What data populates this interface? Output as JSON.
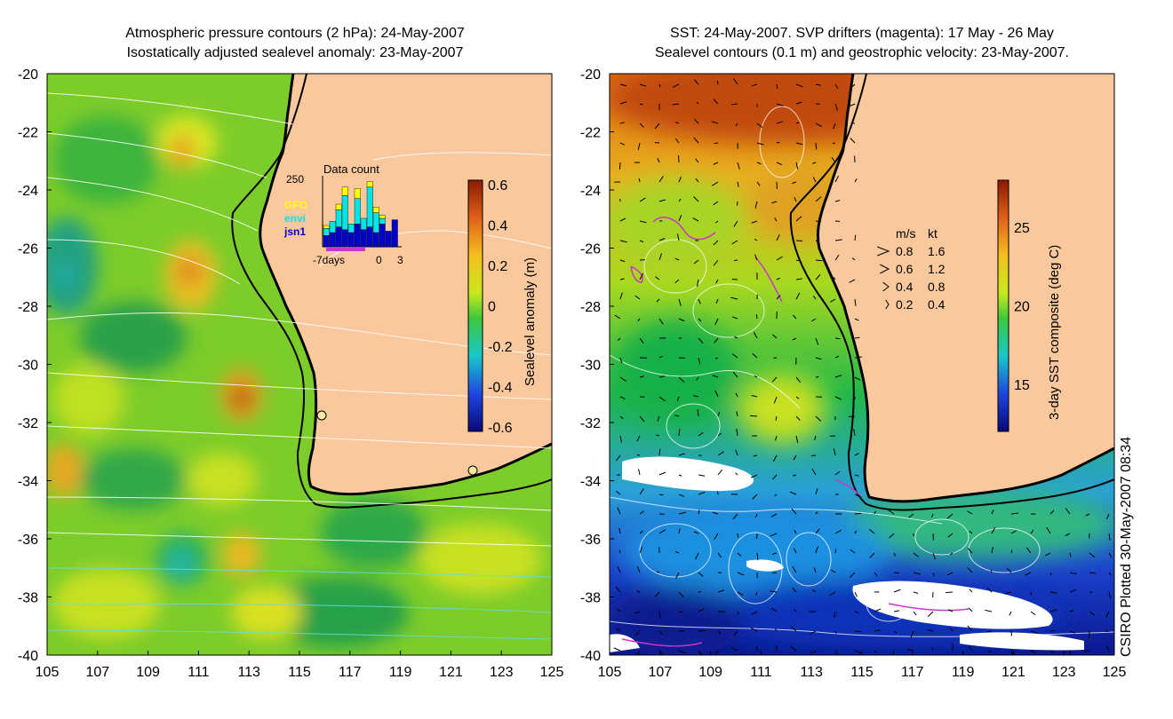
{
  "left_panel": {
    "title_line1": "Atmospheric pressure contours (2 hPa): 24-May-2007",
    "title_line2": "Isostatically adjusted sealevel anomaly: 23-May-2007",
    "colorbar": {
      "label": "Sealevel anomaly (m)",
      "ticks": [
        "0.6",
        "0.4",
        "0.2",
        "0",
        "-0.2",
        "-0.4",
        "-0.6"
      ]
    },
    "inset": {
      "title": "Data count",
      "ymax_label": "250",
      "legend": [
        {
          "name": "GFO",
          "color": "#ffff00"
        },
        {
          "name": "envi",
          "color": "#00e5e5"
        },
        {
          "name": "jsn1",
          "color": "#0000cc"
        }
      ],
      "x_labels": [
        "-7days",
        "0",
        "3"
      ],
      "bars": [
        {
          "jsn1": 40,
          "envi": 25,
          "gfo": 10
        },
        {
          "jsn1": 50,
          "envi": 40,
          "gfo": 0
        },
        {
          "jsn1": 70,
          "envi": 60,
          "gfo": 20
        },
        {
          "jsn1": 60,
          "envi": 120,
          "gfo": 30
        },
        {
          "jsn1": 50,
          "envi": 30,
          "gfo": 0
        },
        {
          "jsn1": 80,
          "envi": 90,
          "gfo": 35
        },
        {
          "jsn1": 60,
          "envi": 40,
          "gfo": 0
        },
        {
          "jsn1": 70,
          "envi": 140,
          "gfo": 20
        },
        {
          "jsn1": 50,
          "envi": 70,
          "gfo": 20
        },
        {
          "jsn1": 80,
          "envi": 20,
          "gfo": 10
        },
        {
          "jsn1": 55,
          "envi": 0,
          "gfo": 0
        },
        {
          "jsn1": 95,
          "envi": 0,
          "gfo": 0
        }
      ]
    }
  },
  "right_panel": {
    "title_line1": "SST: 24-May-2007. SVP drifters (magenta): 17 May - 26 May",
    "title_line2": "Sealevel contours (0.1 m) and geostrophic velocity: 23-May-2007.",
    "colorbar": {
      "label": "3-day SST composite (deg C)",
      "ticks": [
        "25",
        "20",
        "15"
      ]
    },
    "speed_legend": {
      "header_ms": "m/s",
      "header_kt": "kt",
      "rows": [
        {
          "ms": "0.8",
          "kt": "1.6"
        },
        {
          "ms": "0.6",
          "kt": "1.2"
        },
        {
          "ms": "0.4",
          "kt": "0.8"
        },
        {
          "ms": "0.2",
          "kt": "0.4"
        }
      ]
    }
  },
  "axes": {
    "lat_labels": [
      "-20",
      "-22",
      "-24",
      "-26",
      "-28",
      "-30",
      "-32",
      "-34",
      "-36",
      "-38",
      "-40"
    ],
    "lon_labels": [
      "105",
      "107",
      "109",
      "111",
      "113",
      "115",
      "117",
      "119",
      "121",
      "123",
      "125"
    ]
  },
  "credit": "CSIRO Plotted 30-May-2007 08:34",
  "colors": {
    "land": "#f9c99d",
    "coast": "#000000",
    "pressure_contour": "#ffffff",
    "drifter": "#cc33cc"
  }
}
